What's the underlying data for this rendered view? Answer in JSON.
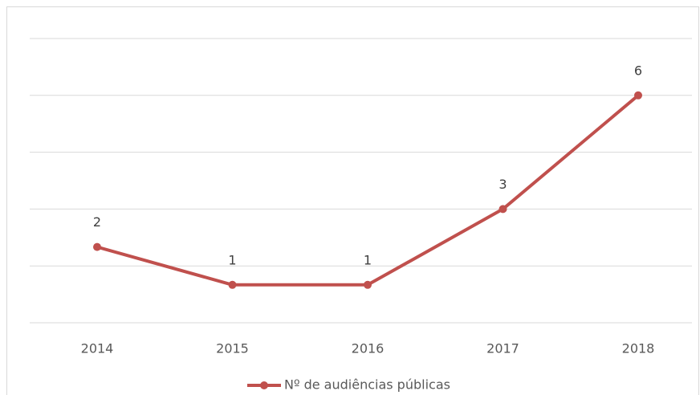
{
  "chart_data": {
    "type": "line",
    "categories": [
      "2014",
      "2015",
      "2016",
      "2017",
      "2018"
    ],
    "series": [
      {
        "name": "Nº de audiências públicas",
        "color": "#c0504d",
        "values": [
          2,
          1,
          1,
          3,
          6
        ]
      }
    ],
    "ylim": [
      0,
      7.5
    ],
    "yticks": [
      0,
      1.5,
      3,
      4.5,
      6,
      7.5
    ],
    "grid": true,
    "legend": "bottom"
  }
}
